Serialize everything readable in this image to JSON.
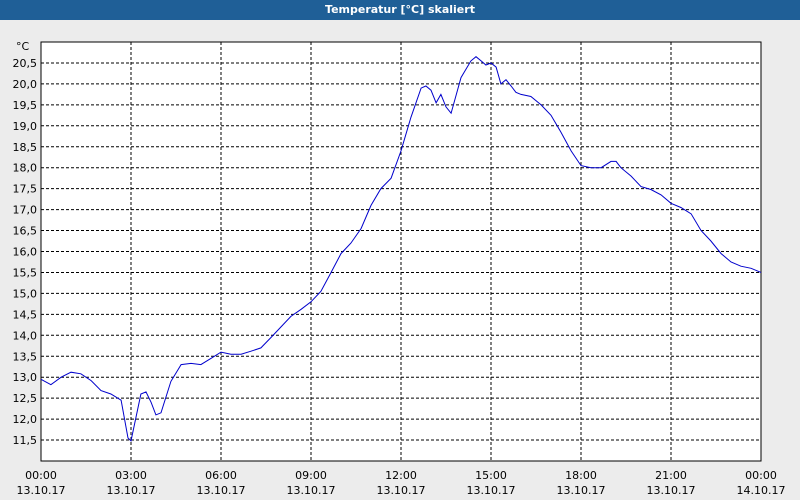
{
  "window": {
    "title": "Temperatur [°C] skaliert"
  },
  "chart_data": {
    "type": "line",
    "title": "Temperatur [°C] skaliert",
    "ylabel": "°C",
    "ylim": [
      11.0,
      21.0
    ],
    "xlim_hours": [
      0,
      24
    ],
    "grid": true,
    "line_color": "#0000cc",
    "y_ticks": [
      "11,5",
      "12,0",
      "12,5",
      "13,0",
      "13,5",
      "14,0",
      "14,5",
      "15,0",
      "15,5",
      "16,0",
      "16,5",
      "17,0",
      "17,5",
      "18,0",
      "18,5",
      "19,0",
      "19,5",
      "20,0",
      "20,5"
    ],
    "x_ticks": [
      {
        "time": "00:00",
        "date": "13.10.17"
      },
      {
        "time": "03:00",
        "date": "13.10.17"
      },
      {
        "time": "06:00",
        "date": "13.10.17"
      },
      {
        "time": "09:00",
        "date": "13.10.17"
      },
      {
        "time": "12:00",
        "date": "13.10.17"
      },
      {
        "time": "15:00",
        "date": "13.10.17"
      },
      {
        "time": "18:00",
        "date": "13.10.17"
      },
      {
        "time": "21:00",
        "date": "13.10.17"
      },
      {
        "time": "00:00",
        "date": "14.10.17"
      }
    ],
    "series": [
      {
        "points": [
          [
            0.0,
            12.95
          ],
          [
            0.33,
            12.82
          ],
          [
            0.67,
            13.0
          ],
          [
            1.0,
            13.12
          ],
          [
            1.33,
            13.08
          ],
          [
            1.67,
            12.92
          ],
          [
            2.0,
            12.68
          ],
          [
            2.33,
            12.6
          ],
          [
            2.67,
            12.45
          ],
          [
            2.9,
            11.55
          ],
          [
            3.0,
            11.48
          ],
          [
            3.33,
            12.6
          ],
          [
            3.5,
            12.65
          ],
          [
            3.67,
            12.4
          ],
          [
            3.83,
            12.1
          ],
          [
            4.0,
            12.15
          ],
          [
            4.33,
            12.9
          ],
          [
            4.67,
            13.3
          ],
          [
            5.0,
            13.33
          ],
          [
            5.33,
            13.3
          ],
          [
            5.67,
            13.45
          ],
          [
            6.0,
            13.6
          ],
          [
            6.33,
            13.55
          ],
          [
            6.67,
            13.55
          ],
          [
            7.0,
            13.62
          ],
          [
            7.33,
            13.7
          ],
          [
            7.67,
            13.95
          ],
          [
            8.0,
            14.2
          ],
          [
            8.33,
            14.45
          ],
          [
            8.67,
            14.62
          ],
          [
            9.0,
            14.8
          ],
          [
            9.33,
            15.05
          ],
          [
            9.67,
            15.5
          ],
          [
            10.0,
            15.95
          ],
          [
            10.33,
            16.2
          ],
          [
            10.67,
            16.55
          ],
          [
            11.0,
            17.1
          ],
          [
            11.33,
            17.5
          ],
          [
            11.67,
            17.75
          ],
          [
            12.0,
            18.4
          ],
          [
            12.33,
            19.2
          ],
          [
            12.67,
            19.9
          ],
          [
            12.83,
            19.95
          ],
          [
            13.0,
            19.85
          ],
          [
            13.17,
            19.55
          ],
          [
            13.33,
            19.75
          ],
          [
            13.5,
            19.45
          ],
          [
            13.67,
            19.3
          ],
          [
            14.0,
            20.15
          ],
          [
            14.33,
            20.55
          ],
          [
            14.5,
            20.65
          ],
          [
            14.67,
            20.55
          ],
          [
            14.83,
            20.45
          ],
          [
            15.0,
            20.5
          ],
          [
            15.17,
            20.4
          ],
          [
            15.33,
            20.0
          ],
          [
            15.5,
            20.1
          ],
          [
            15.67,
            19.95
          ],
          [
            15.83,
            19.8
          ],
          [
            16.0,
            19.75
          ],
          [
            16.33,
            19.7
          ],
          [
            16.67,
            19.5
          ],
          [
            17.0,
            19.25
          ],
          [
            17.33,
            18.85
          ],
          [
            17.67,
            18.4
          ],
          [
            18.0,
            18.05
          ],
          [
            18.33,
            18.0
          ],
          [
            18.67,
            18.0
          ],
          [
            19.0,
            18.15
          ],
          [
            19.17,
            18.15
          ],
          [
            19.33,
            18.0
          ],
          [
            19.67,
            17.8
          ],
          [
            20.0,
            17.55
          ],
          [
            20.33,
            17.48
          ],
          [
            20.67,
            17.35
          ],
          [
            21.0,
            17.15
          ],
          [
            21.33,
            17.05
          ],
          [
            21.67,
            16.9
          ],
          [
            22.0,
            16.5
          ],
          [
            22.33,
            16.25
          ],
          [
            22.67,
            15.95
          ],
          [
            23.0,
            15.75
          ],
          [
            23.33,
            15.65
          ],
          [
            23.67,
            15.6
          ],
          [
            24.0,
            15.5
          ]
        ]
      }
    ]
  }
}
